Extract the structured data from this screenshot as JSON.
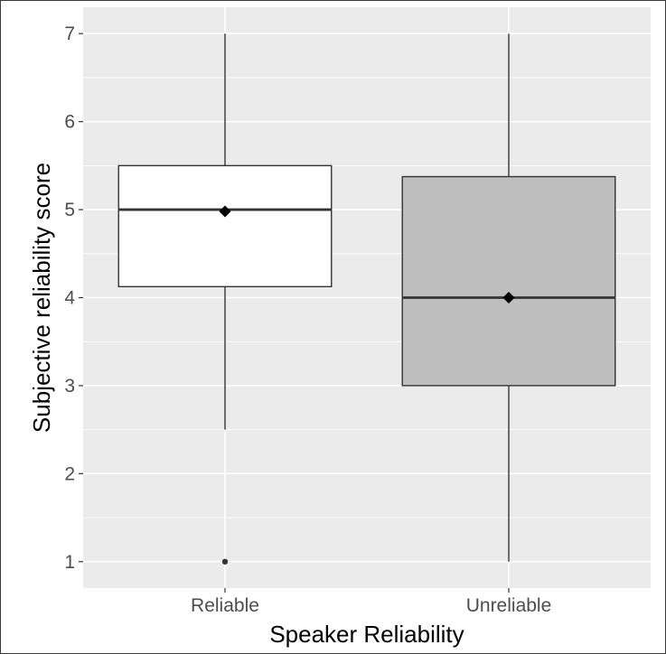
{
  "chart_data": {
    "type": "boxplot",
    "title": "",
    "xlabel": "Speaker Reliability",
    "ylabel": "Subjective reliability score",
    "ylim": [
      0.7,
      7.3
    ],
    "yticks": [
      1,
      2,
      3,
      4,
      5,
      6,
      7
    ],
    "grid": true,
    "legend": "none",
    "colors": {
      "panel_bg": "#ebebeb",
      "grid": "#ffffff",
      "box_stroke": "#333333",
      "mean_marker": "#000000"
    },
    "categories": [
      "Reliable",
      "Unreliable"
    ],
    "boxes": [
      {
        "category": "Reliable",
        "fill": "#ffffff",
        "whisker_low": 2.5,
        "q1": 4.125,
        "median": 5,
        "q3": 5.5,
        "whisker_high": 7,
        "mean": 4.98,
        "outliers": [
          1
        ]
      },
      {
        "category": "Unreliable",
        "fill": "#bebebe",
        "whisker_low": 1,
        "q1": 3,
        "median": 4,
        "q3": 5.375,
        "whisker_high": 7,
        "mean": 4,
        "outliers": []
      }
    ]
  }
}
